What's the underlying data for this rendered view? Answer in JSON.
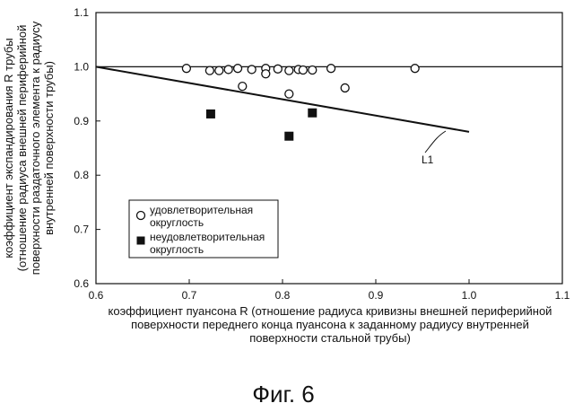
{
  "chart_data": {
    "type": "scatter",
    "xlabel_lines": [
      "коэффициент пуансона R (отношение радиуса кривизны внешней периферийной",
      "поверхности переднего конца пуансона к заданному радиусу внутренней",
      "поверхности стальной трубы)"
    ],
    "ylabel_lines": [
      "коэффициент экспандирования R трубы",
      "(отношение радиуса внешней периферийной",
      "поверхности раздаточного элемента к радиусу",
      "внутренней поверхности трубы)"
    ],
    "xlim": [
      0.6,
      1.1
    ],
    "ylim": [
      0.6,
      1.1
    ],
    "x_ticks": [
      "0.6",
      "0.7",
      "0.8",
      "0.9",
      "1.0",
      "1.1"
    ],
    "y_ticks": [
      "0.6",
      "0.7",
      "0.8",
      "0.9",
      "1.0",
      "1.1"
    ],
    "grid": false,
    "legend_position": "lower-left",
    "series": [
      {
        "name": "удовлетворительная округлость",
        "marker": "open-circle",
        "points": [
          [
            0.697,
            0.997
          ],
          [
            0.722,
            0.993
          ],
          [
            0.732,
            0.993
          ],
          [
            0.742,
            0.995
          ],
          [
            0.752,
            0.997
          ],
          [
            0.757,
            0.964
          ],
          [
            0.767,
            0.995
          ],
          [
            0.782,
            0.997
          ],
          [
            0.782,
            0.987
          ],
          [
            0.795,
            0.996
          ],
          [
            0.807,
            0.993
          ],
          [
            0.807,
            0.95
          ],
          [
            0.817,
            0.995
          ],
          [
            0.822,
            0.994
          ],
          [
            0.832,
            0.994
          ],
          [
            0.852,
            0.997
          ],
          [
            0.867,
            0.961
          ],
          [
            0.942,
            0.997
          ]
        ]
      },
      {
        "name": "неудовлетворительная округлость",
        "marker": "filled-square",
        "points": [
          [
            0.723,
            0.913
          ],
          [
            0.807,
            0.872
          ],
          [
            0.832,
            0.915
          ]
        ]
      }
    ],
    "reference_lines": [
      {
        "type": "horizontal",
        "y": 1.0
      },
      {
        "name": "L1",
        "type": "line",
        "from": [
          0.6,
          1.0
        ],
        "to": [
          1.0,
          0.88
        ]
      }
    ]
  },
  "figure_caption": "Фиг. 6"
}
